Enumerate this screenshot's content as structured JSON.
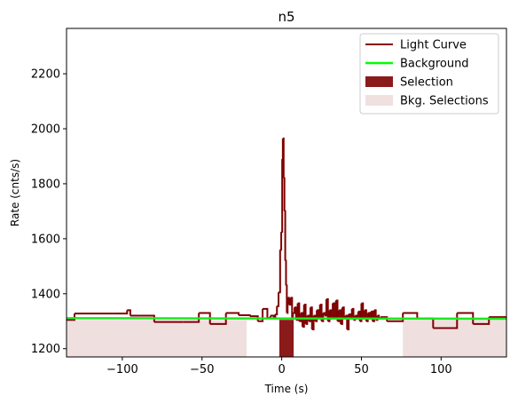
{
  "chart_data": {
    "type": "line",
    "title": "n5",
    "xlabel": "Time (s)",
    "ylabel": "Rate (cnts/s)",
    "xlim": [
      -135,
      141
    ],
    "ylim": [
      1170,
      2365
    ],
    "xticks": [
      -100,
      -50,
      0,
      50,
      100
    ],
    "xtick_labels": [
      "−100",
      "−50",
      "0",
      "50",
      "100"
    ],
    "yticks": [
      1200,
      1400,
      1600,
      1800,
      2000,
      2200
    ],
    "ytick_labels": [
      "1200",
      "1400",
      "1600",
      "1800",
      "2000",
      "2200"
    ],
    "grid": false,
    "legend_position": "top-right",
    "legend": [
      {
        "label": "Light Curve",
        "kind": "line",
        "color": "#8b0000"
      },
      {
        "label": "Background",
        "kind": "line",
        "color": "#00ff00"
      },
      {
        "label": "Selection",
        "kind": "patch",
        "color": "#8b1a1a"
      },
      {
        "label": "Bkg. Selections",
        "kind": "patch",
        "color": "#f0e0e0"
      }
    ],
    "colors": {
      "light_curve": "#7f0000",
      "background": "#1ee61e",
      "selection": "#8b1a1a",
      "bkg_selection": "#efdfdf"
    },
    "light_curve": {
      "x": [
        -135,
        -130,
        -105,
        -97,
        -95,
        -80,
        -62,
        -52,
        -45,
        -35,
        -27,
        -20,
        -15,
        -12,
        -9,
        -7,
        -5,
        -4,
        -3,
        -2,
        -1,
        -0.3,
        0.3,
        0.7,
        1.2,
        1.7,
        2.2,
        2.7,
        3.2,
        3.7,
        4.5,
        5.5,
        6.5,
        7,
        8,
        9,
        10,
        11,
        12,
        13,
        14,
        15,
        16,
        17,
        18,
        19,
        20,
        21,
        22,
        23,
        24,
        25,
        26,
        27,
        28,
        29,
        30,
        31,
        32,
        33,
        34,
        35,
        36,
        37,
        38,
        39,
        40,
        41,
        42,
        43,
        44,
        45,
        46,
        47,
        48,
        49,
        50,
        51,
        52,
        53,
        54,
        55,
        56,
        57,
        58,
        59,
        60,
        61,
        62,
        66,
        76,
        85,
        95,
        110,
        120,
        130,
        141
      ],
      "y": [
        1305,
        1328,
        1328,
        1340,
        1320,
        1297,
        1297,
        1330,
        1290,
        1330,
        1322,
        1318,
        1300,
        1345,
        1312,
        1320,
        1310,
        1325,
        1355,
        1405,
        1560,
        1625,
        1890,
        1965,
        1820,
        1700,
        1520,
        1430,
        1330,
        1385,
        1360,
        1385,
        1310,
        1330,
        1350,
        1305,
        1365,
        1300,
        1330,
        1280,
        1360,
        1290,
        1320,
        1300,
        1350,
        1270,
        1320,
        1300,
        1340,
        1310,
        1360,
        1300,
        1330,
        1320,
        1380,
        1300,
        1340,
        1310,
        1365,
        1310,
        1375,
        1300,
        1340,
        1290,
        1350,
        1310,
        1320,
        1270,
        1325,
        1310,
        1345,
        1305,
        1320,
        1310,
        1335,
        1300,
        1365,
        1310,
        1340,
        1300,
        1330,
        1310,
        1335,
        1300,
        1340,
        1305,
        1320,
        1310,
        1315,
        1300,
        1330,
        1310,
        1275,
        1330,
        1290,
        1315,
        1305
      ]
    },
    "background": {
      "x": [
        -135,
        141
      ],
      "y": [
        1311,
        1309
      ]
    },
    "selection": {
      "x0": -1.5,
      "x1": 7.5
    },
    "bkg_selections": [
      {
        "x0": -135,
        "x1": -22
      },
      {
        "x0": 76,
        "x1": 141
      }
    ]
  }
}
